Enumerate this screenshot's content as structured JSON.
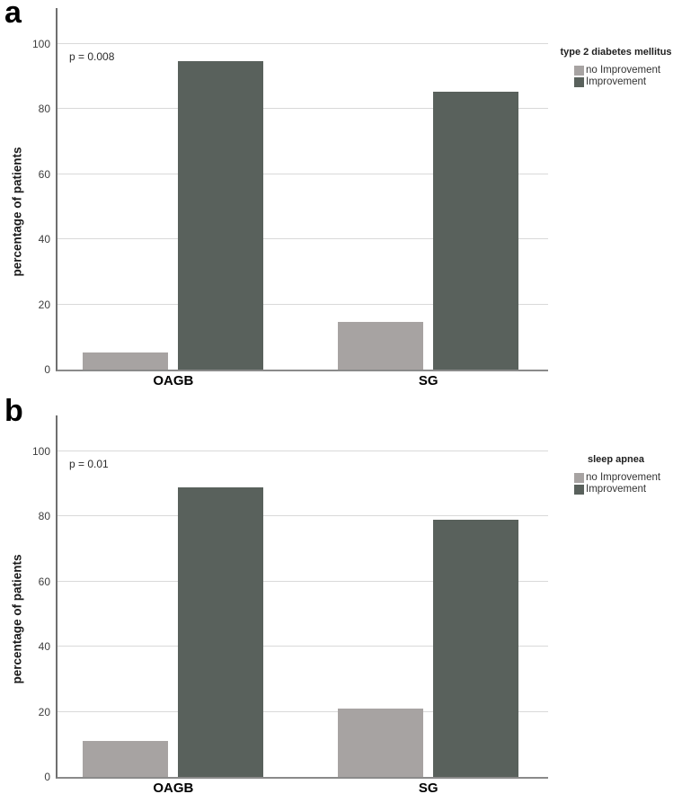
{
  "chart_data": [
    {
      "type": "bar",
      "panel_label": "a",
      "legend_title": "type 2 diabetes mellitus",
      "legend_position": "right",
      "annotation": "p = 0.008",
      "ylabel": "percentage of patients",
      "xlabel": "",
      "categories": [
        "OAGB",
        "SG"
      ],
      "series": [
        {
          "name": "no Improvement",
          "color": "#a7a3a2",
          "values": [
            5.3,
            14.7
          ]
        },
        {
          "name": "Improvement",
          "color": "#59615c",
          "values": [
            94.7,
            85.3
          ]
        }
      ],
      "yticks": [
        0,
        20,
        40,
        60,
        80,
        100
      ],
      "ylim": [
        0,
        111
      ],
      "grid": true
    },
    {
      "type": "bar",
      "panel_label": "b",
      "legend_title": "sleep apnea",
      "legend_position": "right",
      "annotation": "p = 0.01",
      "ylabel": "percentage of patients",
      "xlabel": "",
      "categories": [
        "OAGB",
        "SG"
      ],
      "series": [
        {
          "name": "no Improvement",
          "color": "#a7a3a2",
          "values": [
            11.1,
            21.1
          ]
        },
        {
          "name": "Improvement",
          "color": "#59615c",
          "values": [
            88.9,
            78.9
          ]
        }
      ],
      "yticks": [
        0,
        20,
        40,
        60,
        80,
        100
      ],
      "ylim": [
        0,
        111
      ],
      "grid": true
    }
  ]
}
